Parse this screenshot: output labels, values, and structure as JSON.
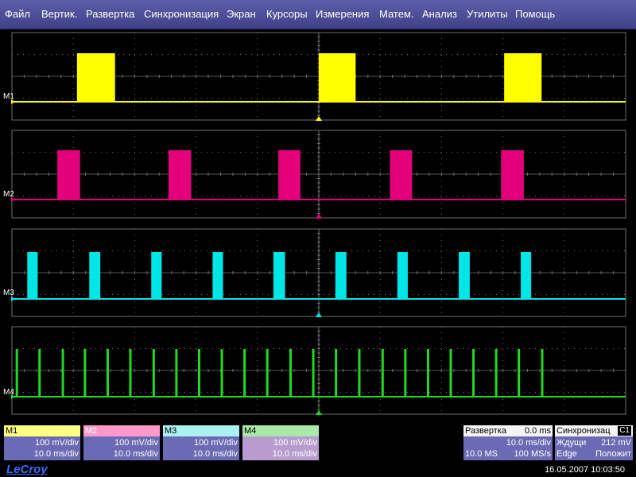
{
  "menu": [
    "Файл",
    "Вертик.",
    "Развертка",
    "Синхронизация",
    "Экран",
    "Курсоры",
    "Измерения",
    "Матем.",
    "Анализ",
    "Утилиты",
    "Помощь"
  ],
  "colors": {
    "M1": "#ffff00",
    "M2": "#e3007b",
    "M3": "#00e5e5",
    "M4": "#22d822",
    "grid": "#6f6f6f",
    "menu": "#4a4d96"
  },
  "traces": [
    {
      "label": "M1",
      "color": "#ffff00",
      "scale": "100 mV/div",
      "timebase": "10.0 ms/div"
    },
    {
      "label": "M2",
      "color": "#e3007b",
      "scale": "100 mV/div",
      "timebase": "10.0 ms/div"
    },
    {
      "label": "M3",
      "color": "#00e5e5",
      "scale": "100 mV/div",
      "timebase": "10.0 ms/div"
    },
    {
      "label": "M4",
      "color": "#22d822",
      "scale": "100 mV/div",
      "timebase": "10.0 ms/div"
    }
  ],
  "timebase": {
    "title": "Развертка",
    "delay": "0.0 ms",
    "per_div": "10.0 ms/div",
    "samples": "10.0 MS",
    "rate": "100 MS/s"
  },
  "trigger": {
    "title": "Синхронизац",
    "channel": "C1",
    "mode": "Ждущи",
    "level": "212 mV",
    "type": "Edge",
    "slope": "Положит"
  },
  "brand": "LeCroy",
  "datetime": "16.05.2007 10:03:50",
  "chart_data": {
    "type": "line",
    "x_range_ms": [
      -50,
      50
    ],
    "series": [
      {
        "name": "M1",
        "pulses_ms": [
          [
            -39.4,
            -33.2
          ],
          [
            0,
            6.0
          ],
          [
            30.2,
            36.3
          ]
        ]
      },
      {
        "name": "M2",
        "pulses_ms": [
          [
            -42.6,
            -38.9
          ],
          [
            -24.5,
            -20.8
          ],
          [
            -6.6,
            -3.0
          ],
          [
            11.6,
            15.2
          ],
          [
            29.7,
            33.4
          ]
        ]
      },
      {
        "name": "M3",
        "pulses_ms": [
          [
            -47.5,
            -45.8
          ],
          [
            -37.4,
            -35.6
          ],
          [
            -27.3,
            -25.6
          ],
          [
            -17.3,
            -15.6
          ],
          [
            -7.4,
            -5.5
          ],
          [
            2.7,
            4.5
          ],
          [
            12.8,
            14.5
          ],
          [
            22.8,
            24.6
          ],
          [
            32.9,
            34.6
          ]
        ]
      },
      {
        "name": "M4",
        "pulses_ms": [
          -49.2,
          -45.5,
          -41.7,
          -38.1,
          -34.4,
          -30.7,
          -26.9,
          -23.2,
          -19.5,
          -15.8,
          -12.1,
          -8.4,
          -4.6,
          -0.9,
          2.8,
          6.6,
          10.4,
          14.1,
          17.8,
          21.5,
          25.2,
          28.9,
          32.6,
          36.4
        ]
      }
    ]
  }
}
